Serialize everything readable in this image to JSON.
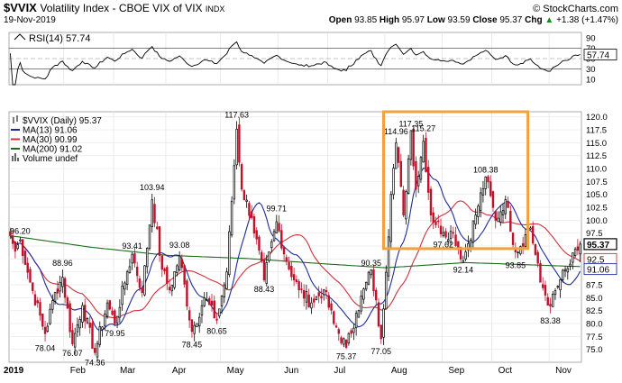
{
  "header": {
    "symbol": "$VVIX",
    "name": "Volatility Index - CBOE VIX of VIX",
    "exchange": "INDX",
    "watermark": "© StockCharts.com",
    "date": "19-Nov-2019",
    "open_label": "Open",
    "open": "93.85",
    "high_label": "High",
    "high": "95.97",
    "low_label": "Low",
    "low": "93.59",
    "close_label": "Close",
    "close": "95.37",
    "chg_label": "Chg",
    "chg": "+1.38 (+1.47%)",
    "chg_arrow": "▲"
  },
  "colors": {
    "up": "#000000",
    "down": "#c0102a",
    "ma13": "#1f2b9c",
    "ma30": "#d0303a",
    "ma200": "#1e6b1e",
    "rsi": "#000000",
    "box": "#f2a23a",
    "last_badge": "#ffffff"
  },
  "rsi_panel": {
    "label": "RSI(14) 57.74",
    "ticks": [
      "90",
      "70",
      "50",
      "30",
      "10"
    ],
    "last": "57.74"
  },
  "legend": [
    {
      "text": "$VVIX (Daily) 95.37",
      "swatch": "bars"
    },
    {
      "text": "MA(13) 91.06",
      "swatch": "ma13"
    },
    {
      "text": "MA(30) 90.99",
      "swatch": "ma30"
    },
    {
      "text": "MA(200) 91.02",
      "swatch": "ma200"
    },
    {
      "text": "Volume undef",
      "swatch": "volume"
    }
  ],
  "price_badges": [
    "95.37",
    "92.5",
    "91.06"
  ],
  "chart_data": {
    "type": "candlestick",
    "title": "$VVIX Volatility Index - CBOE VIX of VIX",
    "x_tick_labels": [
      "2019",
      "Feb",
      "Mar",
      "Apr",
      "May",
      "Jun",
      "Jul",
      "Aug",
      "Sep",
      "Oct",
      "Nov"
    ],
    "y_tick_labels": [
      "75.0",
      "77.5",
      "80.0",
      "82.5",
      "85.0",
      "87.5",
      "90.0",
      "92.5",
      "95.0",
      "97.5",
      "100.0",
      "102.5",
      "105.0",
      "107.5",
      "110.0",
      "112.5",
      "115.0",
      "117.5",
      "120.0"
    ],
    "ylim": [
      72.5,
      121
    ],
    "rsi_ylim": [
      0,
      100
    ],
    "anchors": [
      [
        "2019-01-02",
        97.0
      ],
      [
        "2019-01-04",
        94.0
      ],
      [
        "2019-01-08",
        96.2
      ],
      [
        "2019-01-14",
        88.0
      ],
      [
        "2019-01-22",
        78.04
      ],
      [
        "2019-01-28",
        86.0
      ],
      [
        "2019-01-31",
        88.96
      ],
      [
        "2019-02-06",
        76.07
      ],
      [
        "2019-02-12",
        83.5
      ],
      [
        "2019-02-19",
        74.36
      ],
      [
        "2019-02-26",
        84.0
      ],
      [
        "2019-03-01",
        79.95
      ],
      [
        "2019-03-08",
        90.0
      ],
      [
        "2019-03-12",
        93.41
      ],
      [
        "2019-03-18",
        86.0
      ],
      [
        "2019-03-22",
        103.94
      ],
      [
        "2019-03-28",
        90.5
      ],
      [
        "2019-04-02",
        86.5
      ],
      [
        "2019-04-08",
        93.08
      ],
      [
        "2019-04-15",
        78.45
      ],
      [
        "2019-04-22",
        85.0
      ],
      [
        "2019-04-29",
        80.65
      ],
      [
        "2019-05-03",
        90.0
      ],
      [
        "2019-05-09",
        117.63
      ],
      [
        "2019-05-13",
        106.0
      ],
      [
        "2019-05-17",
        100.5
      ],
      [
        "2019-05-24",
        88.43
      ],
      [
        "2019-05-31",
        99.71
      ],
      [
        "2019-06-06",
        92.0
      ],
      [
        "2019-06-13",
        86.5
      ],
      [
        "2019-06-20",
        84.0
      ],
      [
        "2019-06-27",
        86.5
      ],
      [
        "2019-07-03",
        80.0
      ],
      [
        "2019-07-10",
        75.37
      ],
      [
        "2019-07-16",
        82.0
      ],
      [
        "2019-07-24",
        90.35
      ],
      [
        "2019-07-30",
        77.05
      ],
      [
        "2019-08-05",
        105.0
      ],
      [
        "2019-08-07",
        114.96
      ],
      [
        "2019-08-12",
        101.0
      ],
      [
        "2019-08-15",
        117.35
      ],
      [
        "2019-08-19",
        106.0
      ],
      [
        "2019-08-22",
        115.27
      ],
      [
        "2019-08-27",
        101.0
      ],
      [
        "2019-09-03",
        97.62
      ],
      [
        "2019-09-09",
        97.5
      ],
      [
        "2019-09-13",
        92.14
      ],
      [
        "2019-09-20",
        101.0
      ],
      [
        "2019-09-26",
        108.38
      ],
      [
        "2019-10-02",
        100.0
      ],
      [
        "2019-10-08",
        104.0
      ],
      [
        "2019-10-14",
        93.85
      ],
      [
        "2019-10-22",
        98.5
      ],
      [
        "2019-10-28",
        88.0
      ],
      [
        "2019-11-01",
        83.38
      ],
      [
        "2019-11-07",
        88.5
      ],
      [
        "2019-11-13",
        91.5
      ],
      [
        "2019-11-19",
        95.37
      ]
    ],
    "ma200": [
      [
        "2019-01-02",
        97.0
      ],
      [
        "2019-02-15",
        94.8
      ],
      [
        "2019-04-01",
        93.2
      ],
      [
        "2019-05-15",
        92.6
      ],
      [
        "2019-07-01",
        91.5
      ],
      [
        "2019-08-01",
        90.8
      ],
      [
        "2019-09-15",
        91.8
      ],
      [
        "2019-11-19",
        91.02
      ]
    ],
    "annotations": [
      {
        "date": "2019-01-08",
        "value": "96.20",
        "pos": "above"
      },
      {
        "date": "2019-01-22",
        "value": "78.04",
        "pos": "below"
      },
      {
        "date": "2019-01-31",
        "value": "88.96",
        "pos": "above"
      },
      {
        "date": "2019-02-06",
        "value": "76.07",
        "pos": "below"
      },
      {
        "date": "2019-02-19",
        "value": "74.36",
        "pos": "below"
      },
      {
        "date": "2019-03-01",
        "value": "79.95",
        "pos": "below"
      },
      {
        "date": "2019-03-12",
        "value": "93.41",
        "pos": "above"
      },
      {
        "date": "2019-03-22",
        "value": "103.94",
        "pos": "above"
      },
      {
        "date": "2019-04-08",
        "value": "93.08",
        "pos": "above"
      },
      {
        "date": "2019-04-15",
        "value": "78.45",
        "pos": "below"
      },
      {
        "date": "2019-04-29",
        "value": "80.65",
        "pos": "below"
      },
      {
        "date": "2019-05-09",
        "value": "117.63",
        "pos": "above"
      },
      {
        "date": "2019-05-24",
        "value": "88.43",
        "pos": "below"
      },
      {
        "date": "2019-05-31",
        "value": "99.71",
        "pos": "above"
      },
      {
        "date": "2019-07-10",
        "value": "75.37",
        "pos": "below"
      },
      {
        "date": "2019-07-24",
        "value": "90.35",
        "pos": "above"
      },
      {
        "date": "2019-07-30",
        "value": "77.05",
        "pos": "below"
      },
      {
        "date": "2019-08-07",
        "value": "114.96",
        "pos": "above"
      },
      {
        "date": "2019-08-15",
        "value": "117.35",
        "pos": "above"
      },
      {
        "date": "2019-08-22",
        "value": "115.27",
        "pos": "above"
      },
      {
        "date": "2019-09-03",
        "value": "97.62",
        "pos": "below"
      },
      {
        "date": "2019-09-13",
        "value": "92.14",
        "pos": "below"
      },
      {
        "date": "2019-09-26",
        "value": "108.38",
        "pos": "above"
      },
      {
        "date": "2019-10-14",
        "value": "93.85",
        "pos": "below"
      },
      {
        "date": "2019-11-01",
        "value": "83.38",
        "pos": "below"
      }
    ],
    "highlight_box": {
      "from": "2019-07-31",
      "to": "2019-10-20",
      "low": 94.5,
      "high": 121.0
    }
  }
}
